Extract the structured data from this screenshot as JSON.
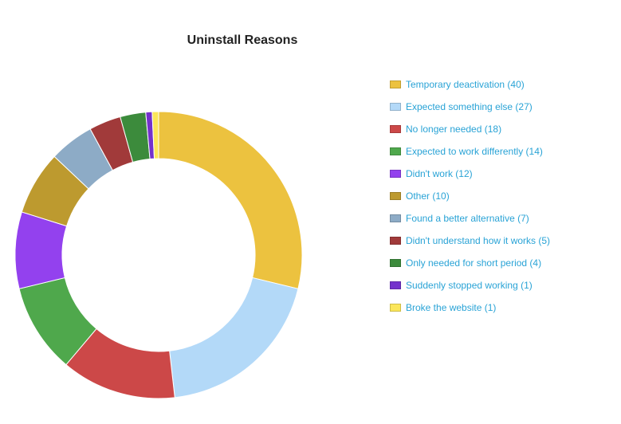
{
  "chart_data": {
    "type": "pie",
    "variant": "donut",
    "title": "Uninstall Reasons",
    "legend_position": "right",
    "slices": [
      {
        "label": "Temporary deactivation (40)",
        "value": 40,
        "color": "#ecc23f"
      },
      {
        "label": "Expected something else (27)",
        "value": 27,
        "color": "#b3d9f8"
      },
      {
        "label": "No longer needed (18)",
        "value": 18,
        "color": "#cc4848"
      },
      {
        "label": "Expected to work differently (14)",
        "value": 14,
        "color": "#4fa84c"
      },
      {
        "label": "Didn't work (12)",
        "value": 12,
        "color": "#9341ee"
      },
      {
        "label": "Other (10)",
        "value": 10,
        "color": "#bd9a2f"
      },
      {
        "label": "Found a better alternative (7)",
        "value": 7,
        "color": "#8dabc6"
      },
      {
        "label": "Didn't understand how it works (5)",
        "value": 5,
        "color": "#a13a3a"
      },
      {
        "label": "Only needed for short period (4)",
        "value": 4,
        "color": "#3c8b3c"
      },
      {
        "label": "Suddenly stopped working (1)",
        "value": 1,
        "color": "#7432cc"
      },
      {
        "label": "Broke the website (1)",
        "value": 1,
        "color": "#fbe65a"
      }
    ]
  }
}
